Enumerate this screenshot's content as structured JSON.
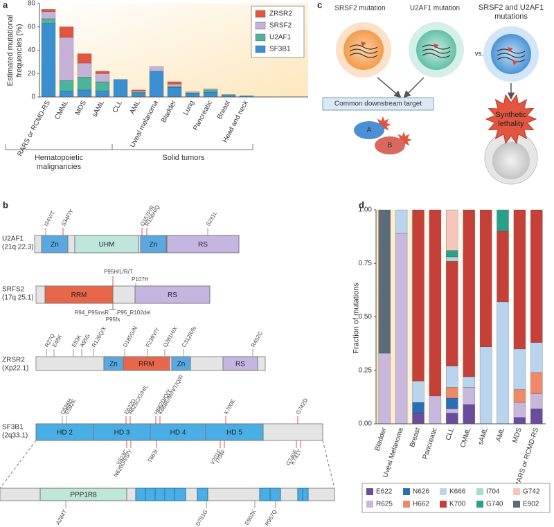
{
  "chart_data": [
    {
      "type": "bar",
      "stacked": true,
      "label": "a",
      "ylabel": "Estimated mutational frequencies (%)",
      "categories": [
        "RARS or RCMD-RS",
        "CMML",
        "MDS",
        "sAML",
        "CLL",
        "AML",
        "Uveal melanoma",
        "Bladder",
        "Lung",
        "Pancreatic",
        "Breast",
        "Head and neck"
      ],
      "series": [
        {
          "name": "SF3B1",
          "color": "#3a8fd0",
          "values": [
            63,
            5,
            6,
            5,
            15,
            3,
            22,
            8,
            3,
            4,
            2,
            1
          ]
        },
        {
          "name": "U2AF1",
          "color": "#4db39b",
          "values": [
            4,
            9,
            11,
            8,
            0,
            1,
            0,
            1,
            0.5,
            2,
            0,
            0
          ]
        },
        {
          "name": "SRSF2",
          "color": "#c6b2d9",
          "values": [
            6,
            37,
            12,
            7,
            0,
            1,
            4,
            2,
            1,
            1,
            0,
            0
          ]
        },
        {
          "name": "ZRSR2",
          "color": "#e2553f",
          "values": [
            2,
            9,
            8,
            2,
            0,
            1,
            0,
            2,
            0,
            0,
            0,
            0
          ]
        }
      ],
      "ylim": [
        0,
        80
      ],
      "yticks": [
        0,
        20,
        40,
        60,
        80
      ],
      "legend": "upper right",
      "group_labels": [
        "Hematopoietic malignancies",
        "Solid tumors"
      ]
    },
    {
      "type": "bar",
      "stacked": true,
      "label": "d",
      "ylabel": "Fraction of mutations",
      "categories": [
        "Bladder",
        "Uveal Melanoma",
        "Breast",
        "Pancreatic",
        "CLL",
        "CMML",
        "sAML",
        "AML",
        "MDS",
        "RARS or RCMD-RS"
      ],
      "series": [
        {
          "name": "E622",
          "color": "#6a4c9c",
          "values": [
            0,
            0,
            0.05,
            0,
            0.05,
            0.09,
            0,
            0,
            0.03,
            0.07
          ]
        },
        {
          "name": "R625",
          "color": "#c9b8dd",
          "values": [
            0.33,
            0.89,
            0,
            0.13,
            0.02,
            0.08,
            0,
            0,
            0.07,
            0.07
          ]
        },
        {
          "name": "N626",
          "color": "#2a6fb5",
          "values": [
            0,
            0,
            0.05,
            0,
            0.05,
            0,
            0,
            0,
            0,
            0
          ]
        },
        {
          "name": "H662",
          "color": "#ef8a68",
          "values": [
            0,
            0,
            0,
            0,
            0.05,
            0,
            0,
            0,
            0.06,
            0.1
          ]
        },
        {
          "name": "K666",
          "color": "#b9d5ee",
          "values": [
            0,
            0.11,
            0.1,
            0,
            0.1,
            0.05,
            0.36,
            0.57,
            0.19,
            0.14
          ]
        },
        {
          "name": "K700",
          "color": "#c6403a",
          "values": [
            0,
            0,
            0.8,
            0.87,
            0.49,
            0.78,
            0.64,
            0.33,
            0.65,
            0.62
          ]
        },
        {
          "name": "I704",
          "color": "#aadbd1",
          "values": [
            0,
            0,
            0,
            0,
            0.02,
            0,
            0,
            0,
            0,
            0
          ]
        },
        {
          "name": "G740",
          "color": "#2aa08a",
          "values": [
            0,
            0,
            0,
            0,
            0.03,
            0,
            0,
            0.1,
            0,
            0
          ]
        },
        {
          "name": "G742",
          "color": "#f4c5b9",
          "values": [
            0,
            0,
            0,
            0,
            0.19,
            0,
            0,
            0,
            0,
            0
          ]
        },
        {
          "name": "E902",
          "color": "#5b6b79",
          "values": [
            0.67,
            0,
            0,
            0,
            0,
            0,
            0,
            0,
            0,
            0
          ]
        }
      ],
      "ylim": [
        0,
        1
      ],
      "yticks": [
        {
          "value": 0,
          "label": "0.00"
        },
        0.25,
        {
          "value": 0.5,
          "label": "0.50"
        },
        0.75,
        {
          "value": 1,
          "label": "1.00"
        }
      ],
      "legend": "lower center"
    }
  ],
  "panel_b": {
    "label": "b",
    "u2af1": {
      "name": "U2AF1",
      "locus": "(21q 22.3)",
      "domains": [
        "Zn",
        "UHM",
        "Zn",
        "RS"
      ],
      "mutations_above": [
        "I24V/T",
        "S34F/Y",
        "Q157P/R",
        "R156H/Q",
        "S231L"
      ]
    },
    "srsf2": {
      "name": "SRFS2",
      "locus": "(17q 25.1)",
      "domains": [
        "RRM",
        "RS"
      ],
      "mutations_above": [
        "P95H/L/R/T",
        "P107H"
      ],
      "mutations_below": [
        "R94_P95insR",
        "P95fs",
        "P95_R102del"
      ]
    },
    "zrsr2": {
      "name": "ZRSR2",
      "locus": "(Xp22.1)",
      "domains": [
        "Zn",
        "RRM",
        "Zn",
        "RS"
      ],
      "mutations_above": [
        "R27Q",
        "E48K",
        "E93K",
        "A95G",
        "R126Q/X",
        "D185G/N",
        "F239V/Y",
        "Q281H/X",
        "C312R/fs",
        "R452C"
      ]
    },
    "sf3b1": {
      "name": "SF3B1",
      "locus": "(2q33.1)",
      "domains": [
        "HD 2",
        "HD 3",
        "HD 4",
        "HD 5"
      ],
      "mutations_above": [
        "D586H",
        "E592K",
        "E622D",
        "R625C/G/H/L",
        "H662D/Q/Y",
        "K666E/M/N/T/Q/R",
        "K700E",
        "G742D"
      ],
      "mutations_below": [
        "Y623C",
        "N626D/I/S/Y",
        "T663I",
        "V701F",
        "I704F",
        "G740E",
        "K741T"
      ]
    },
    "sf3b1_full": {
      "domains": [
        "PPP1R8"
      ],
      "mutations_below": [
        "A284T",
        "D781G",
        "E902K",
        "R957Q"
      ]
    }
  },
  "panel_c": {
    "label": "c",
    "srsf2_title": "SRSF2 mutation",
    "u2af1_title": "U2AF1 mutation",
    "double_title": "SRSF2 and U2AF1 mutations",
    "vs": "vs.",
    "target": "Common downstream target",
    "protein_a": "A",
    "protein_b": "B",
    "outcome": "Synthetic lethality"
  }
}
